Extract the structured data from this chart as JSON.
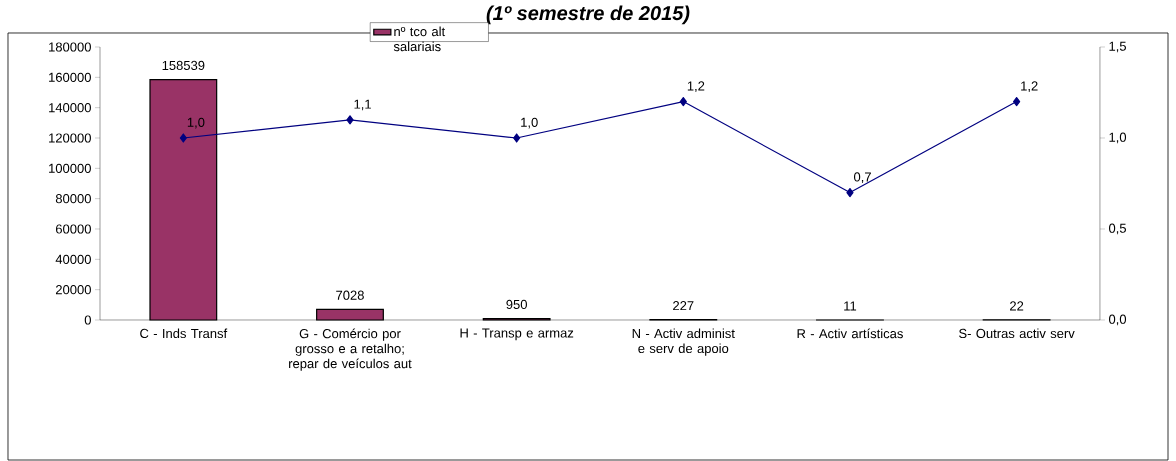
{
  "chart_data": {
    "type": "bar",
    "title": "(1º semestre de 2015)",
    "categories": [
      "C - Inds Transf",
      "G - Comércio por grosso e a retalho; repar de veículos aut",
      "H - Transp e armaz",
      "N - Activ administ e serv de apoio",
      "R - Activ artísticas",
      "S- Outras activ serv"
    ],
    "series": [
      {
        "name": "nº tco alt salariais",
        "color": "#993366",
        "values": [
          158539,
          7028,
          950,
          227,
          11,
          22
        ],
        "value_labels": [
          "158539",
          "7028",
          "950",
          "227",
          "11",
          "22"
        ]
      },
      {
        "type": "line",
        "axis": "y2",
        "color": "#000080",
        "marker": "diamond",
        "values": [
          1.0,
          1.1,
          1.0,
          1.2,
          0.7,
          1.2
        ],
        "value_labels": [
          "1,0",
          "1,1",
          "1,0",
          "1,2",
          "0,7",
          "1,2"
        ]
      }
    ],
    "ylim": [
      0,
      180000
    ],
    "yticks": [
      0,
      20000,
      40000,
      60000,
      80000,
      100000,
      120000,
      140000,
      160000,
      180000
    ],
    "y2lim": [
      0,
      1.5
    ],
    "y2ticks": [
      {
        "value": 0,
        "label": "0,0"
      },
      {
        "value": 0.5,
        "label": "0,5"
      },
      {
        "value": 1.0,
        "label": "1,0"
      },
      {
        "value": 1.5,
        "label": "1,5"
      }
    ],
    "grid": false,
    "legend": "top"
  }
}
